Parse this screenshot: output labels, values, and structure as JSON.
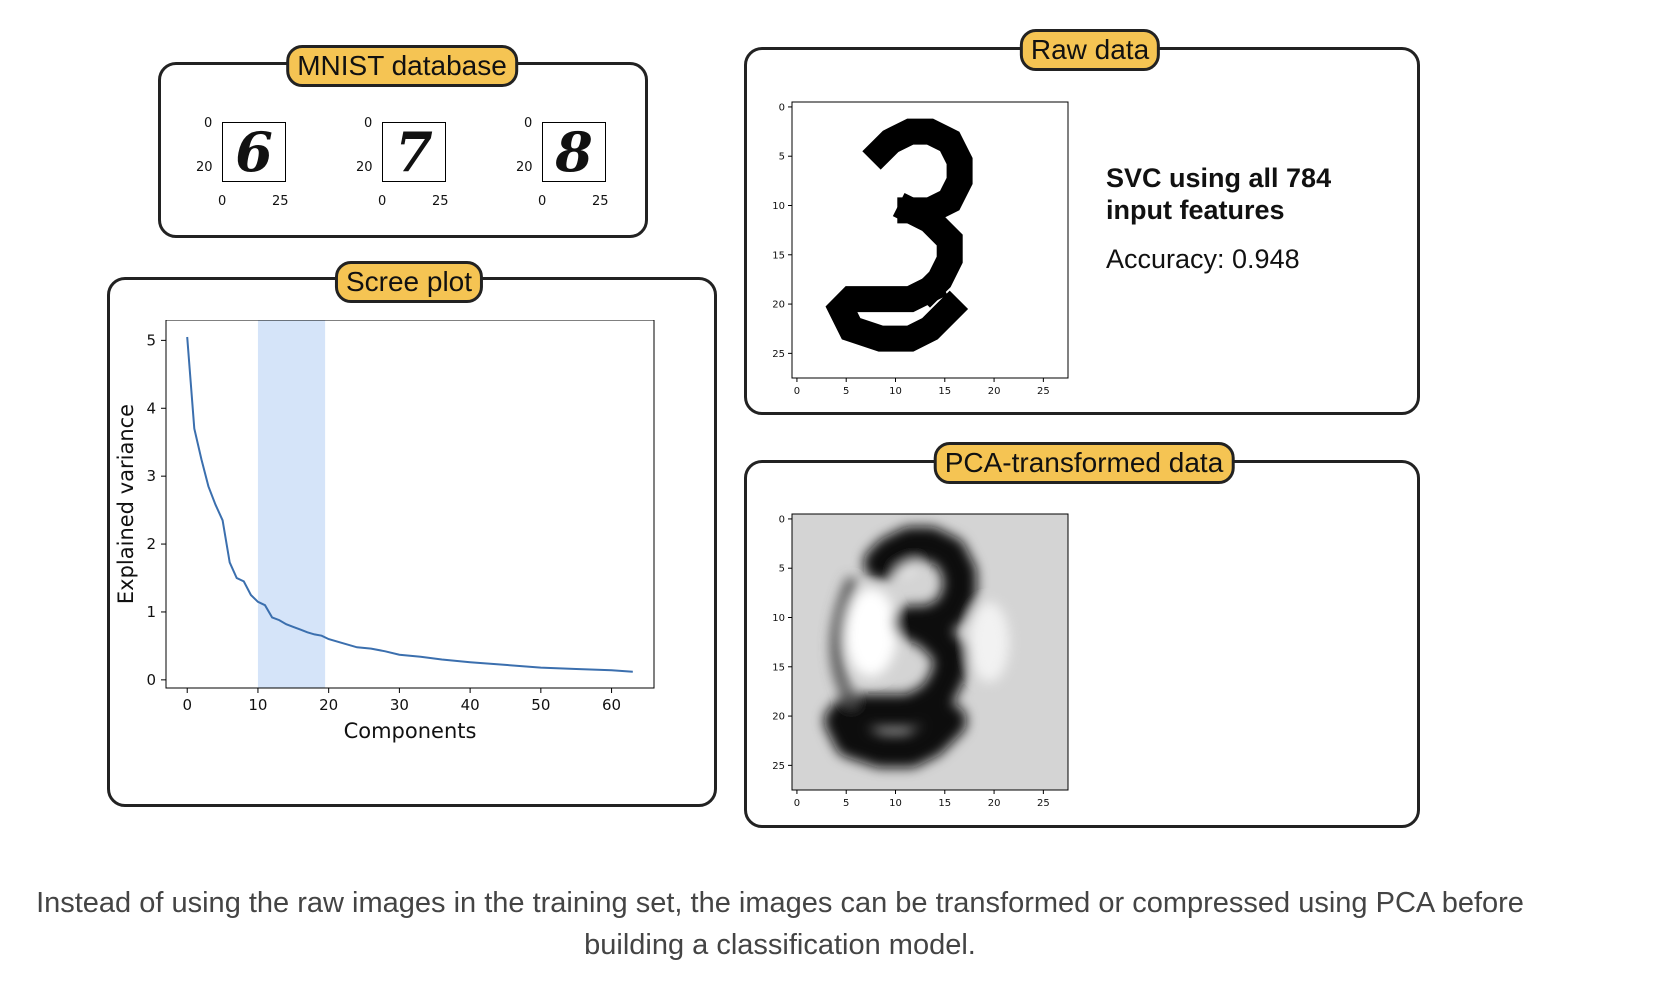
{
  "mnist": {
    "title": "MNIST database",
    "digits": [
      "6",
      "7",
      "8"
    ],
    "y_ticks": [
      "0",
      "20"
    ],
    "x_ticks": [
      "0",
      "25"
    ]
  },
  "scree": {
    "title": "Scree plot"
  },
  "raw": {
    "title": "Raw data",
    "svc_text": "SVC using all 784 input features",
    "accuracy_text": "Accuracy: 0.948"
  },
  "pca": {
    "title": "PCA-transformed data"
  },
  "digit_image": {
    "ticks": [
      "0",
      "5",
      "10",
      "15",
      "20",
      "25"
    ]
  },
  "caption": "Instead of using the raw images in the training set, the images can be transformed or compressed using PCA before building a classification model.",
  "chart_data": {
    "type": "line",
    "title": "",
    "xlabel": "Components",
    "ylabel": "Explained variance",
    "xlim": [
      -3,
      66
    ],
    "ylim": [
      -0.12,
      5.3
    ],
    "xticks": [
      0,
      10,
      20,
      30,
      40,
      50,
      60
    ],
    "yticks": [
      0,
      1,
      2,
      3,
      4,
      5
    ],
    "highlight_range": [
      10,
      19.5
    ],
    "highlight_color": "#d5e4f9",
    "line_color": "#3b6fae",
    "x": [
      0,
      1,
      2,
      3,
      4,
      5,
      6,
      7,
      8,
      9,
      10,
      11,
      12,
      13,
      14,
      15,
      16,
      17,
      18,
      19,
      20,
      22,
      24,
      26,
      28,
      30,
      33,
      36,
      40,
      45,
      50,
      55,
      60,
      63
    ],
    "values": [
      5.05,
      3.7,
      3.25,
      2.85,
      2.58,
      2.35,
      1.73,
      1.5,
      1.45,
      1.25,
      1.15,
      1.1,
      0.92,
      0.88,
      0.82,
      0.78,
      0.74,
      0.7,
      0.67,
      0.65,
      0.6,
      0.54,
      0.48,
      0.46,
      0.42,
      0.37,
      0.34,
      0.3,
      0.26,
      0.22,
      0.18,
      0.16,
      0.14,
      0.12
    ]
  }
}
